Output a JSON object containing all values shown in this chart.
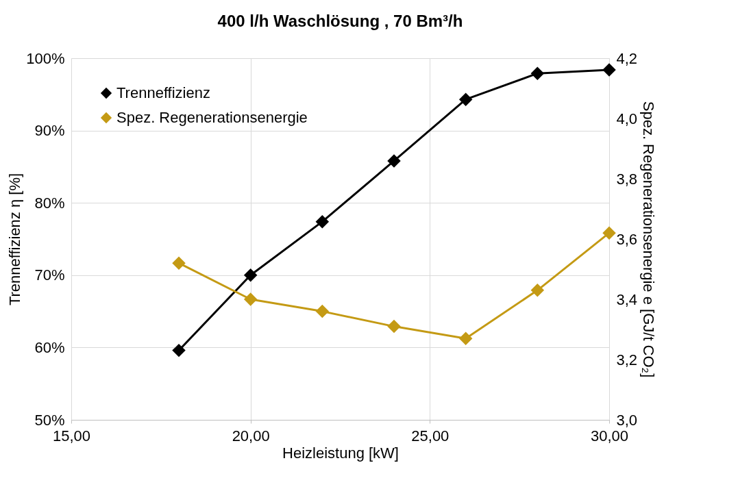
{
  "chart_data": {
    "type": "line",
    "title": "400 l/h Waschlösung , 70 Bm³/h",
    "xlabel": "Heizleistung [kW]",
    "ylabel": "Trenneffizienz η [%]",
    "y2label": "Spez. Regenerationsenergie e  [GJ/t CO₂]",
    "x": [
      18,
      20,
      22,
      24,
      26,
      28,
      30
    ],
    "series": [
      {
        "name": "Trenneffizienz",
        "color": "#000000",
        "values": [
          59.6,
          70.0,
          77.4,
          85.8,
          94.3,
          97.9,
          98.4
        ]
      },
      {
        "name": "Spez. Regenerationsenergie",
        "color": "#c49a14",
        "axis": "y2",
        "values": [
          3.52,
          3.4,
          3.36,
          3.31,
          3.27,
          3.43,
          3.62
        ]
      }
    ],
    "xlim": [
      15,
      30
    ],
    "xticks": [
      {
        "value": 15,
        "label": "15,00"
      },
      {
        "value": 20,
        "label": "20,00"
      },
      {
        "value": 25,
        "label": "25,00"
      },
      {
        "value": 30,
        "label": "30,00"
      }
    ],
    "ylim": [
      50,
      100
    ],
    "yticks": [
      {
        "value": 50,
        "label": "50%"
      },
      {
        "value": 60,
        "label": "60%"
      },
      {
        "value": 70,
        "label": "70%"
      },
      {
        "value": 80,
        "label": "80%"
      },
      {
        "value": 90,
        "label": "90%"
      },
      {
        "value": 100,
        "label": "100%"
      }
    ],
    "y2lim": [
      3.0,
      4.2
    ],
    "y2ticks": [
      {
        "value": 3.0,
        "label": "3,0"
      },
      {
        "value": 3.2,
        "label": "3,2"
      },
      {
        "value": 3.4,
        "label": "3,4"
      },
      {
        "value": 3.6,
        "label": "3,6"
      },
      {
        "value": 3.8,
        "label": "3,8"
      },
      {
        "value": 4.0,
        "label": "4,0"
      },
      {
        "value": 4.2,
        "label": "4,2"
      }
    ],
    "grid": true,
    "legend": "top left",
    "marker": "diamond",
    "line_style": "solid"
  }
}
